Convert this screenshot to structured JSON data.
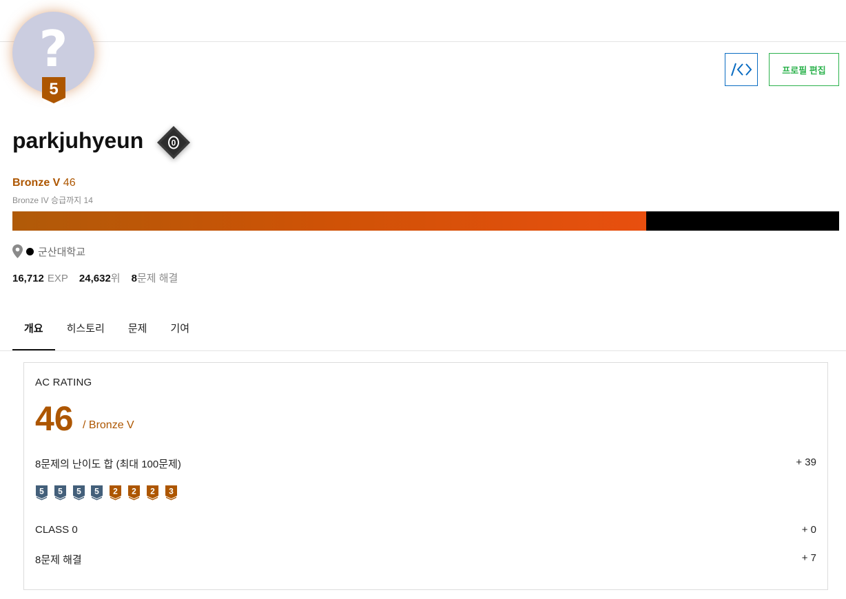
{
  "profile": {
    "avatar_glyph": "?",
    "tier_badge_level": "5",
    "username": "parkjuhyeun",
    "class_badge_value": "0",
    "tier_name": "Bronze V",
    "rating": "46",
    "next_tier": "Bronze IV 승급까지 14",
    "progress_fraction": 0.7667,
    "organization": "군산대학교",
    "exp_value": "16,712",
    "exp_unit": "EXP",
    "rank_value": "24,632",
    "rank_unit": "위",
    "solved_value": "8",
    "solved_unit": "문제 해결"
  },
  "actions": {
    "code_icon": "code-brackets-icon",
    "edit_label": "프로필 편집"
  },
  "tabs": [
    {
      "label": "개요",
      "active": true
    },
    {
      "label": "히스토리",
      "active": false
    },
    {
      "label": "문제",
      "active": false
    },
    {
      "label": "기여",
      "active": false
    }
  ],
  "ac_rating": {
    "title": "AC RATING",
    "rating": "46",
    "tier_suffix": "/ Bronze V",
    "difficulty_label": "8문제의 난이도 합 (최대 100문제)",
    "difficulty_value": "+ 39",
    "problem_badges": [
      {
        "level": "5",
        "tier": "unrated"
      },
      {
        "level": "5",
        "tier": "unrated"
      },
      {
        "level": "5",
        "tier": "unrated"
      },
      {
        "level": "5",
        "tier": "unrated"
      },
      {
        "level": "2",
        "tier": "bronze"
      },
      {
        "level": "2",
        "tier": "bronze"
      },
      {
        "level": "2",
        "tier": "bronze"
      },
      {
        "level": "3",
        "tier": "bronze"
      }
    ],
    "class_label": "CLASS 0",
    "class_value": "+ 0",
    "solved_label": "8문제 해결",
    "solved_value": "+ 7"
  },
  "colors": {
    "bronze": "#ad5600",
    "unrated": "#435f7a",
    "edit_green": "#2bb24c",
    "code_blue": "#0a6cc2"
  }
}
